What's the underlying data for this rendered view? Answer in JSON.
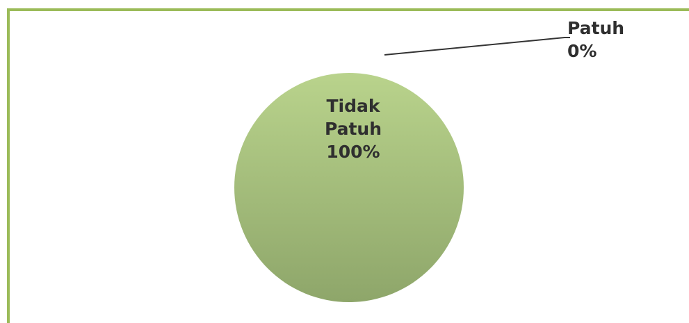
{
  "chart_data": {
    "type": "pie",
    "categories": [
      "Patuh",
      "Tidak Patuh"
    ],
    "values": [
      0,
      100
    ],
    "value_labels": [
      "0%",
      "100%"
    ]
  }
}
